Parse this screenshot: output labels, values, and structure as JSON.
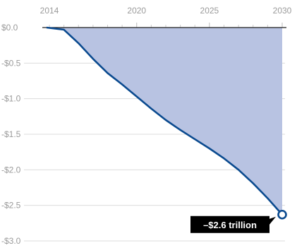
{
  "chart_data": {
    "type": "area",
    "title": "",
    "xlabel": "",
    "ylabel": "",
    "x_ticks": [
      "2014",
      "2020",
      "2025",
      "2030"
    ],
    "y_ticks": [
      "$0.0",
      "-$0.5",
      "-$1.0",
      "-$1.5",
      "-$2.0",
      "-$2.5",
      "-$3.0"
    ],
    "xlim": [
      2013.5,
      2030
    ],
    "ylim": [
      -3.0,
      0.0
    ],
    "grid": true,
    "series": [
      {
        "color": "#0a4a8f",
        "fill": "#b8c3e2",
        "x": [
          2013.8,
          2015,
          2016,
          2017,
          2018,
          2019,
          2020,
          2021,
          2022,
          2023,
          2024,
          2025,
          2026,
          2027,
          2028,
          2029,
          2030
        ],
        "values": [
          0.0,
          -0.03,
          -0.22,
          -0.44,
          -0.64,
          -0.8,
          -0.97,
          -1.14,
          -1.3,
          -1.44,
          -1.57,
          -1.7,
          -1.84,
          -2.0,
          -2.19,
          -2.4,
          -2.63
        ]
      }
    ],
    "annotation": {
      "text": "–$2.6 trillion",
      "x": 2030,
      "y": -2.63
    }
  }
}
